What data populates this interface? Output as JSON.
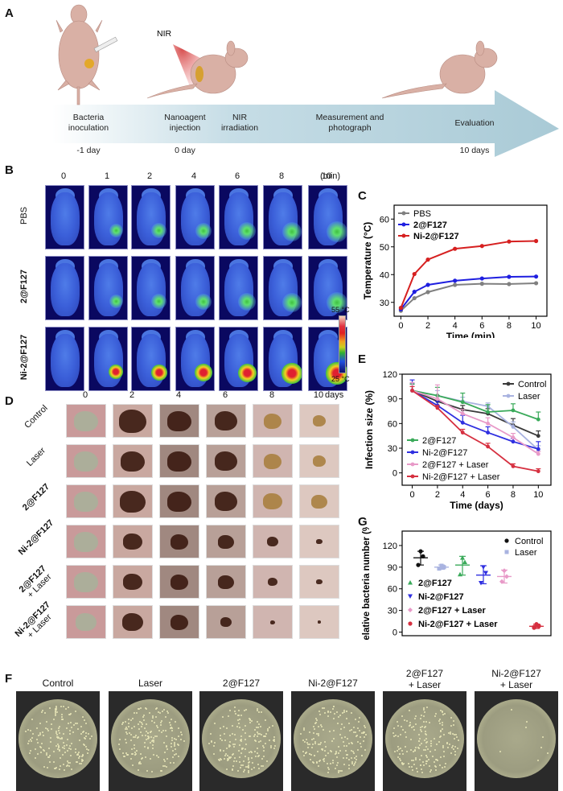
{
  "panels": {
    "A": {
      "letter": "A",
      "nir_label": "NIR",
      "steps": [
        {
          "label_line1": "Bacteria",
          "label_line2": "inoculation",
          "time": "-1 day"
        },
        {
          "label_line1": "Nanoagent",
          "label_line2": "injection",
          "time": "0 day"
        },
        {
          "label_line1": "NIR",
          "label_line2": "irradiation",
          "time": ""
        },
        {
          "label_line1": "Measurement and",
          "label_line2": "photograph",
          "time": ""
        },
        {
          "label_line1": "Evaluation",
          "label_line2": "",
          "time": "10 days"
        }
      ]
    },
    "B": {
      "letter": "B",
      "time_points": [
        "0",
        "1",
        "2",
        "4",
        "6",
        "8",
        "10"
      ],
      "time_unit": "(min)",
      "rows": [
        "PBS",
        "2@F127",
        "Ni-2@F127"
      ],
      "colorbar_max": "55 °C",
      "colorbar_min": "25 °C"
    },
    "C": {
      "letter": "C"
    },
    "D": {
      "letter": "D",
      "days": [
        "0",
        "2",
        "4",
        "6",
        "8",
        "10"
      ],
      "days_unit": "days",
      "rows": [
        {
          "line1": "Control",
          "line2": ""
        },
        {
          "line1": "Laser",
          "line2": ""
        },
        {
          "line1": "2@F127",
          "line2": ""
        },
        {
          "line1": "Ni-2@F127",
          "line2": ""
        },
        {
          "line1": "2@F127",
          "line2": "+ Laser"
        },
        {
          "line1": "Ni-2@F127",
          "line2": "+ Laser"
        }
      ]
    },
    "E": {
      "letter": "E"
    },
    "F": {
      "letter": "F",
      "plates": [
        {
          "line1": "Control",
          "line2": "",
          "colonies": 380
        },
        {
          "line1": "Laser",
          "line2": "",
          "colonies": 330
        },
        {
          "line1": "2@F127",
          "line2": "",
          "colonies": 350
        },
        {
          "line1": "Ni-2@F127",
          "line2": "",
          "colonies": 290
        },
        {
          "line1": "2@F127",
          "line2": "+ Laser",
          "colonies": 200
        },
        {
          "line1": "Ni-2@F127",
          "line2": "+ Laser",
          "colonies": 8
        }
      ]
    },
    "G": {
      "letter": "G"
    }
  },
  "chart_data": [
    {
      "id": "C",
      "type": "line",
      "title": "",
      "xlabel": "Time (min)",
      "ylabel": "Temperature (°C)",
      "x": [
        0,
        1,
        2,
        4,
        6,
        8,
        10
      ],
      "xlim": [
        -0.5,
        10.8
      ],
      "ylim": [
        25,
        65
      ],
      "xticks": [
        0,
        2,
        4,
        6,
        8,
        10
      ],
      "yticks": [
        30,
        40,
        50,
        60
      ],
      "legend_position": "top-left",
      "series": [
        {
          "name": "PBS",
          "color": "#808080",
          "values": [
            27.0,
            31.5,
            33.7,
            36.3,
            36.7,
            36.6,
            36.9
          ]
        },
        {
          "name": "2@F127",
          "color": "#1f1fe0",
          "values": [
            27.5,
            33.8,
            36.3,
            37.8,
            38.6,
            39.2,
            39.3
          ]
        },
        {
          "name": "Ni-2@F127",
          "color": "#d62020",
          "values": [
            28.0,
            40.2,
            45.4,
            49.3,
            50.3,
            51.9,
            52.1
          ]
        }
      ]
    },
    {
      "id": "E",
      "type": "line",
      "title": "",
      "xlabel": "Time (days)",
      "ylabel": "Infection size (%)",
      "x": [
        0,
        2,
        4,
        6,
        8,
        10
      ],
      "xlim": [
        -0.8,
        11
      ],
      "ylim": [
        -15,
        120
      ],
      "xticks": [
        0,
        2,
        4,
        6,
        8,
        10
      ],
      "yticks": [
        0,
        30,
        60,
        90,
        120
      ],
      "legend_position": "top-right / bottom-left",
      "series": [
        {
          "name": "Control",
          "color": "#3a3a3a",
          "values": [
            100,
            87,
            77,
            72,
            58,
            45
          ],
          "errors": [
            8,
            7,
            5,
            6,
            8,
            6
          ]
        },
        {
          "name": "Laser",
          "color": "#a9b3e0",
          "values": [
            100,
            94,
            87,
            81,
            56,
            28
          ],
          "errors": [
            9,
            6,
            5,
            4,
            6,
            5
          ]
        },
        {
          "name": "2@F127",
          "color": "#3aaa5a",
          "values": [
            100,
            94,
            86,
            74,
            76,
            65
          ],
          "errors": [
            8,
            10,
            11,
            9,
            8,
            9
          ]
        },
        {
          "name": "Ni-2@F127",
          "color": "#2f2fe0",
          "values": [
            100,
            82,
            61,
            49,
            38,
            29
          ],
          "errors": [
            13,
            5,
            9,
            7,
            4,
            9
          ]
        },
        {
          "name": "2@F127 + Laser",
          "color": "#e89ac8",
          "values": [
            100,
            90,
            72,
            60,
            43,
            23
          ],
          "errors": [
            10,
            17,
            5,
            7,
            5,
            3
          ]
        },
        {
          "name": "Ni-2@F127 + Laser",
          "color": "#d63040",
          "values": [
            100,
            79,
            49,
            32,
            8,
            2
          ],
          "errors": [
            5,
            3,
            4,
            4,
            3,
            3
          ]
        }
      ]
    },
    {
      "id": "G",
      "type": "scatter",
      "title": "",
      "xlabel": "",
      "ylabel": "Relative bacteria number (%)",
      "ylim": [
        -5,
        140
      ],
      "yticks": [
        0,
        30,
        60,
        90,
        120
      ],
      "legend_position": "top-right / bottom-left",
      "series": [
        {
          "name": "Control",
          "color": "#111111",
          "marker": "circle",
          "points": [
            112,
            105,
            93
          ],
          "mean": 103,
          "sd": [
            93,
            112
          ]
        },
        {
          "name": "Laser",
          "color": "#a9b3e0",
          "marker": "square",
          "points": [
            92,
            90,
            88,
            90
          ],
          "mean": 90,
          "sd": [
            87,
            93
          ]
        },
        {
          "name": "2@F127",
          "color": "#3aaa5a",
          "marker": "triangle-up",
          "points": [
            103,
            97,
            80
          ],
          "mean": 93,
          "sd": [
            79,
            105
          ]
        },
        {
          "name": "Ni-2@F127",
          "color": "#2f2fe0",
          "marker": "triangle-down",
          "points": [
            90,
            82,
            68
          ],
          "mean": 79,
          "sd": [
            67,
            92
          ]
        },
        {
          "name": "2@F127 + Laser",
          "color": "#e89ac8",
          "marker": "diamond",
          "points": [
            85,
            77,
            70
          ],
          "mean": 77,
          "sd": [
            68,
            86
          ]
        },
        {
          "name": "Ni-2@F127 + Laser",
          "color": "#d63040",
          "marker": "circle",
          "points": [
            11,
            8,
            6,
            9,
            7
          ],
          "mean": 8,
          "sd": [
            5,
            11
          ]
        }
      ]
    }
  ]
}
